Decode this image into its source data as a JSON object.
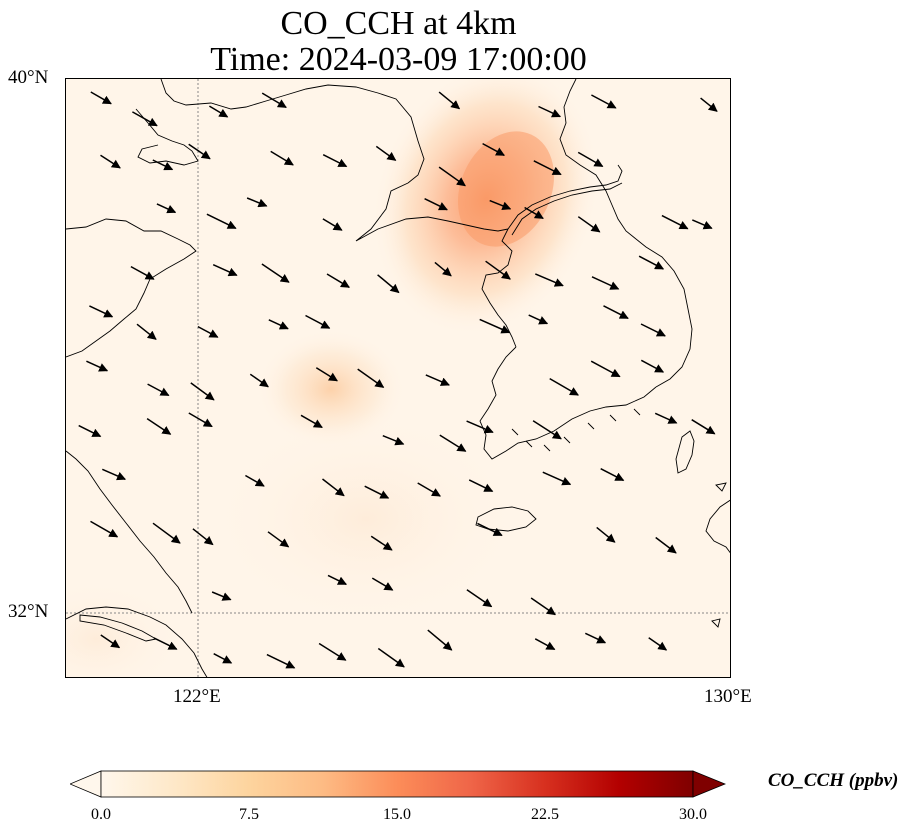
{
  "map": {
    "title_line1": "CO_CCH at 4km",
    "title_line2": "Time: 2024-03-09 17:00:00",
    "lon_ticks": [
      "122°E",
      "130°E"
    ],
    "lat_ticks": [
      "40°N",
      "32°N"
    ],
    "extent": {
      "lon": [
        120,
        130
      ],
      "lat": [
        31,
        40
      ]
    },
    "gridlines": {
      "lon": [
        122
      ],
      "lat": [
        32
      ]
    },
    "wind_direction": "toward east-southeast",
    "plume_max_location": "North Korea coast near 127°E, 38.5°N"
  },
  "colorbar": {
    "label": "CO_CCH (ppbv)",
    "ticks": [
      "0.0",
      "7.5",
      "15.0",
      "22.5",
      "30.0"
    ],
    "range": [
      0,
      30
    ],
    "extend": "both",
    "colormap": "OrRd",
    "colors": [
      "#fff7ec",
      "#fee8c8",
      "#fdd49e",
      "#fdbb84",
      "#fc8d59",
      "#ef6548",
      "#d7301f",
      "#b30000",
      "#7f0000"
    ]
  }
}
